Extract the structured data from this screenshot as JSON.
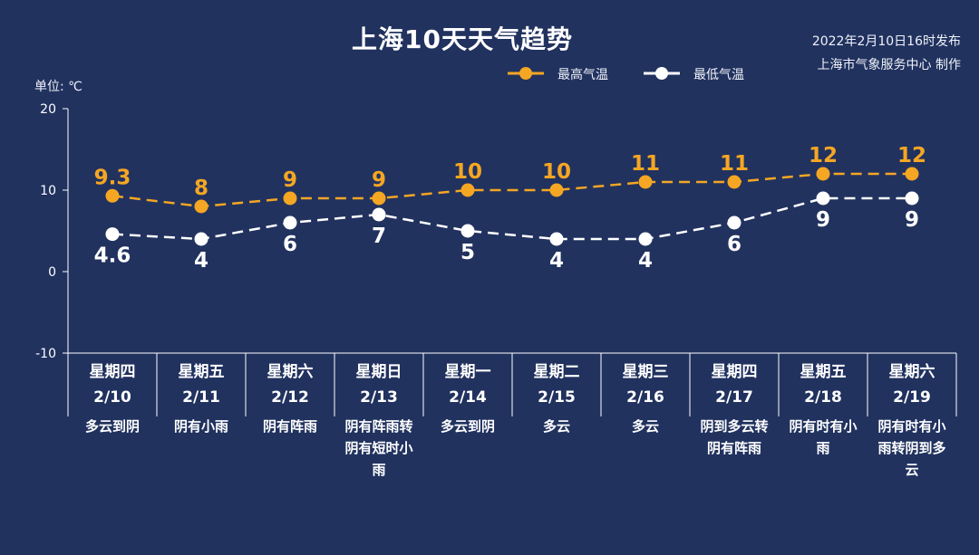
{
  "title": "上海10天天气趋势",
  "publish": {
    "date": "2022年2月10日16时发布",
    "org": "上海市气象服务中心 制作"
  },
  "unit": "单位: ℃",
  "colors": {
    "background": "#21325f",
    "high": "#f5a623",
    "low": "#ffffff",
    "axis": "#ffffff"
  },
  "chart_data": {
    "type": "line",
    "title": "上海10天天气趋势",
    "ylabel": "单位: ℃",
    "ylim": [
      -10,
      20
    ],
    "yticks": [
      -10,
      0,
      10,
      20
    ],
    "legend_position": "top-right",
    "grid": false,
    "categories": [
      "2/10",
      "2/11",
      "2/12",
      "2/13",
      "2/14",
      "2/15",
      "2/16",
      "2/17",
      "2/18",
      "2/19"
    ],
    "weekdays": [
      "星期四",
      "星期五",
      "星期六",
      "星期日",
      "星期一",
      "星期二",
      "星期三",
      "星期四",
      "星期五",
      "星期六"
    ],
    "weather": [
      "多云到阴",
      "阴有小雨",
      "阴有阵雨",
      "阴有阵雨转阴有短时小雨",
      "多云到阴",
      "多云",
      "多云",
      "阴到多云转阴有阵雨",
      "阴有时有小雨",
      "阴有时有小雨转阴到多云"
    ],
    "series": [
      {
        "name": "最高气温",
        "values": [
          9.3,
          8,
          9,
          9,
          10,
          10,
          11,
          11,
          12,
          12
        ],
        "labels": [
          "9.3",
          "8",
          "9",
          "9",
          "10",
          "10",
          "11",
          "11",
          "12",
          "12"
        ]
      },
      {
        "name": "最低气温",
        "values": [
          4.6,
          4,
          6,
          7,
          5,
          4,
          4,
          6,
          9,
          9
        ],
        "labels": [
          "4.6",
          "4",
          "6",
          "7",
          "5",
          "4",
          "4",
          "6",
          "9",
          "9"
        ]
      }
    ]
  }
}
